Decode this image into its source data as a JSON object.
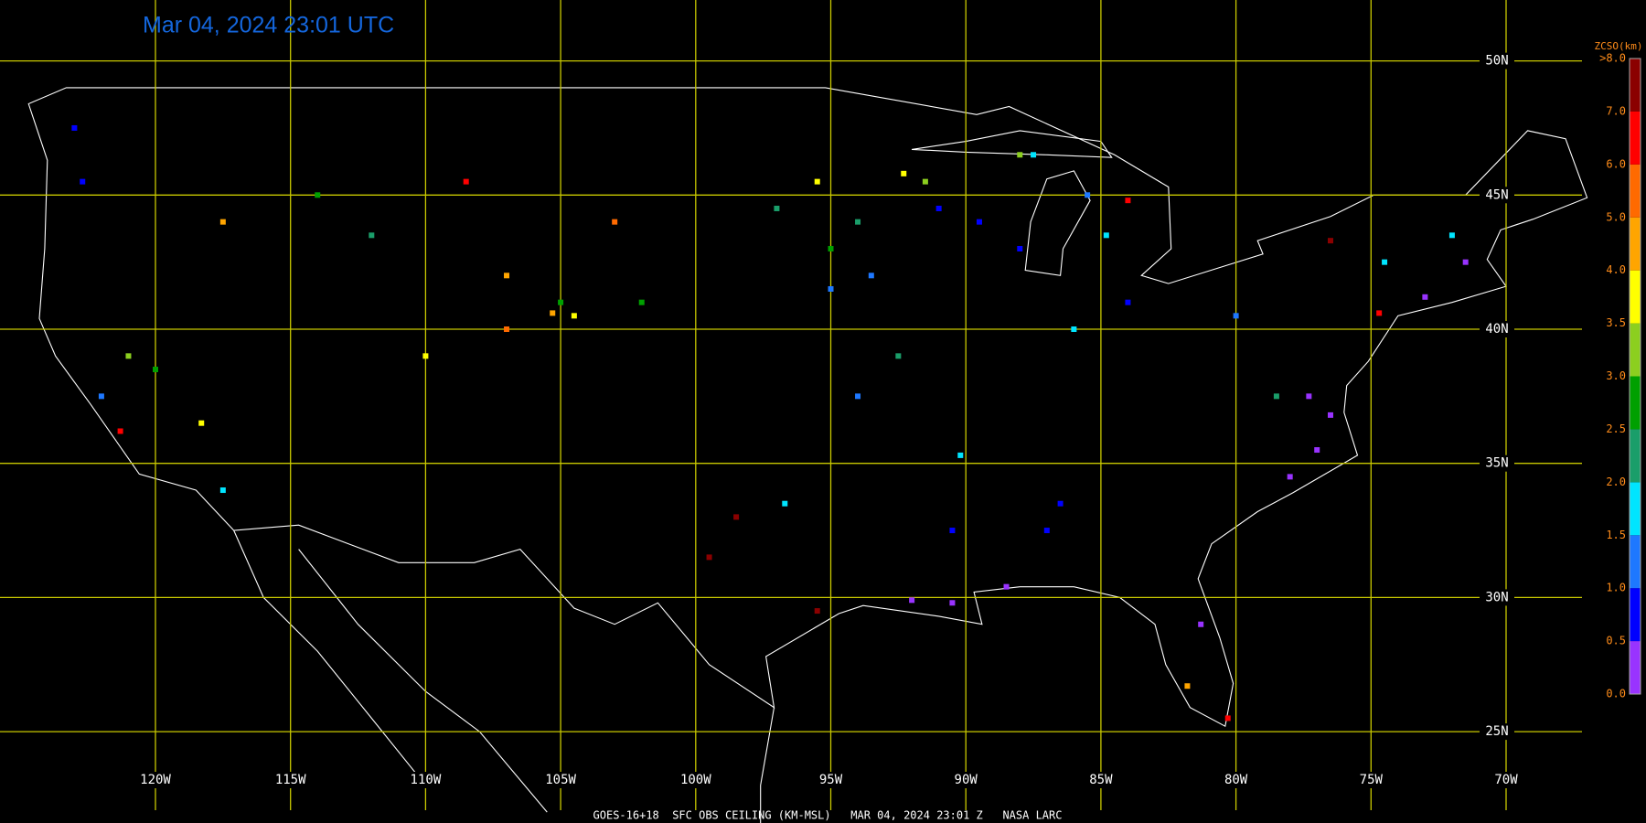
{
  "map": {
    "title": "Mar 04, 2024 23:01 UTC",
    "caption": "GOES-16+18  SFC OBS CEILING (KM-MSL)   MAR 04, 2024 23:01 Z   NASA LARC",
    "grid_color": "#c8c800",
    "lon_ticks": [
      {
        "value": -120,
        "label": "120W"
      },
      {
        "value": -115,
        "label": "115W"
      },
      {
        "value": -110,
        "label": "110W"
      },
      {
        "value": -105,
        "label": "105W"
      },
      {
        "value": -100,
        "label": "100W"
      },
      {
        "value": -95,
        "label": "95W"
      },
      {
        "value": -90,
        "label": "90W"
      },
      {
        "value": -85,
        "label": "85W"
      },
      {
        "value": -80,
        "label": "80W"
      },
      {
        "value": -75,
        "label": "75W"
      },
      {
        "value": -70,
        "label": "70W"
      }
    ],
    "lat_ticks": [
      {
        "value": 50,
        "label": "50N"
      },
      {
        "value": 45,
        "label": "45N"
      },
      {
        "value": 40,
        "label": "40N"
      },
      {
        "value": 35,
        "label": "35N"
      },
      {
        "value": 30,
        "label": "30N"
      },
      {
        "value": 25,
        "label": "25N"
      }
    ],
    "colorbar": {
      "title": "ZCSO(km)",
      "ticks": [
        {
          "value": 0,
          "label": "0.0"
        },
        {
          "value": 0.5,
          "label": "0.5"
        },
        {
          "value": 1,
          "label": "1.0"
        },
        {
          "value": 1.5,
          "label": "1.5"
        },
        {
          "value": 2,
          "label": "2.0"
        },
        {
          "value": 2.5,
          "label": "2.5"
        },
        {
          "value": 3,
          "label": "3.0"
        },
        {
          "value": 3.5,
          "label": "3.5"
        },
        {
          "value": 4,
          "label": "4.0"
        },
        {
          "value": 5,
          "label": "5.0"
        },
        {
          "value": 6,
          "label": "6.0"
        },
        {
          "value": 7,
          "label": "7.0"
        },
        {
          "value": 8,
          "label": ">8.0"
        }
      ],
      "colors": [
        "#9933ff",
        "#0000ff",
        "#1e78ff",
        "#00e5ff",
        "#1a9e6a",
        "#00a000",
        "#8ccf1f",
        "#ffff00",
        "#ffa500",
        "#ff6a00",
        "#ff0000",
        "#8b0000"
      ]
    },
    "stations": {
      "lon": [
        -77,
        -76.5,
        -78,
        -77.3,
        -90.5,
        -92,
        -88.5,
        -81.3,
        -73,
        -71.5,
        -89.5,
        -88,
        -91,
        -86.5,
        -87,
        -90.5,
        -122.7,
        -123,
        -84,
        -85.5,
        -93.5,
        -95,
        -80,
        -122,
        -94,
        -84.8,
        -87.5,
        -86,
        -90.2,
        -96.7,
        -74.5,
        -72,
        -117.5,
        -94,
        -92.5,
        -97,
        -112,
        -78.5,
        -95,
        -102,
        -105,
        -114,
        -120,
        -121,
        -91.5,
        -88,
        -92.3,
        -95.5,
        -104.5,
        -118.3,
        -110,
        -107,
        -105.3,
        -117.5,
        -81.8,
        -107,
        -103,
        -108.5,
        -121.3,
        -80.3,
        -84,
        -74.7,
        -95.5,
        -99.5,
        -98.5,
        -76.5
      ],
      "lat": [
        35.5,
        36.8,
        34.5,
        37.5,
        29.8,
        29.9,
        30.4,
        29,
        41.2,
        42.5,
        44,
        43,
        44.5,
        33.5,
        32.5,
        32.5,
        45.5,
        47.5,
        41,
        45,
        42,
        41.5,
        40.5,
        37.5,
        37.5,
        43.5,
        46.5,
        40,
        35.3,
        33.5,
        42.5,
        43.5,
        34,
        44,
        39,
        44.5,
        43.5,
        37.5,
        43,
        41,
        41,
        45,
        38.5,
        39,
        45.5,
        46.5,
        45.8,
        45.5,
        40.5,
        36.5,
        39,
        42,
        40.6,
        44,
        26.7,
        40,
        44,
        45.5,
        36.2,
        25.5,
        44.8,
        40.6,
        29.5,
        31.5,
        33,
        43.3
      ],
      "ceiling": [
        0.3,
        0.3,
        0.3,
        0.3,
        0.3,
        0.3,
        0.3,
        0.3,
        0.3,
        0.3,
        0.8,
        0.8,
        0.8,
        0.8,
        0.8,
        0.8,
        0.8,
        0.8,
        0.8,
        1.3,
        1.3,
        1.3,
        1.3,
        1.3,
        1.3,
        1.8,
        1.8,
        1.8,
        1.8,
        1.8,
        1.8,
        1.8,
        1.8,
        2.3,
        2.3,
        2.3,
        2.3,
        2.3,
        2.8,
        2.8,
        2.8,
        2.8,
        2.8,
        3.3,
        3.3,
        3.3,
        3.7,
        3.7,
        3.7,
        3.7,
        3.7,
        4.5,
        4.5,
        4.5,
        4.5,
        5.5,
        5.5,
        6.5,
        6.5,
        6.5,
        6.5,
        6.5,
        7.5,
        7.5,
        7.5,
        7.5
      ]
    }
  }
}
